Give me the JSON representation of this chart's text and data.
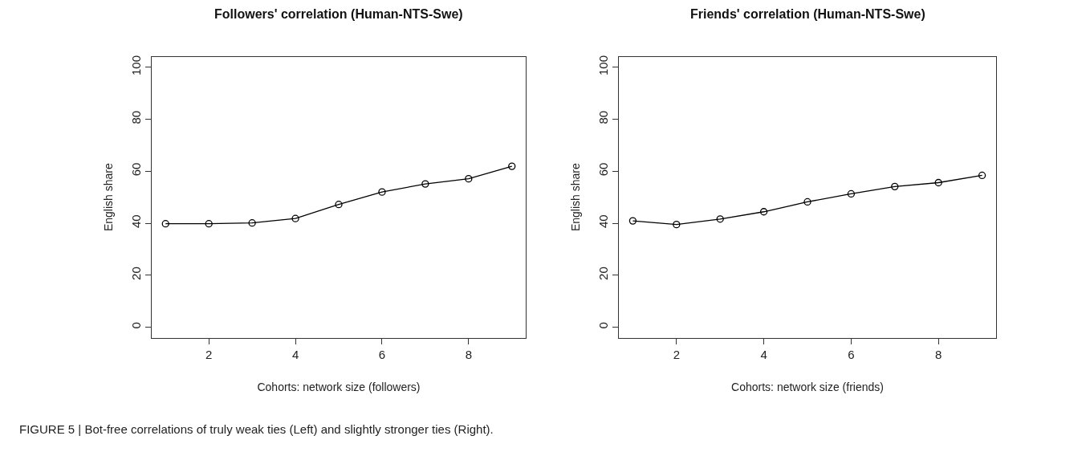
{
  "chart_data": [
    {
      "type": "line",
      "title": "Followers' correlation (Human-NTS-Swe)",
      "xlabel": "Cohorts: network size (followers)",
      "ylabel": "English share",
      "x": [
        1,
        2,
        3,
        4,
        5,
        6,
        7,
        8,
        9
      ],
      "series": [
        {
          "color": "#000000",
          "values": [
            39.8,
            39.8,
            40.1,
            41.8,
            47.2,
            52.0,
            55.1,
            57.1,
            61.9
          ]
        }
      ],
      "xlim": [
        0.68,
        9.32
      ],
      "xticks": [
        2,
        4,
        6,
        8
      ],
      "ylim": [
        -4,
        104
      ],
      "yticks": [
        0,
        20,
        40,
        60,
        80,
        100
      ],
      "marker": "circle",
      "line_style": "solid",
      "annotations": [
        "FIGURE 5 | Bot-free correlations of truly weak ties (Left) and slightly stronger ties (Right)."
      ]
    },
    {
      "type": "line",
      "title": "Friends' correlation (Human-NTS-Swe)",
      "xlabel": "Cohorts: network size (friends)",
      "ylabel": "English share",
      "x": [
        1,
        2,
        3,
        4,
        5,
        6,
        7,
        8,
        9
      ],
      "series": [
        {
          "color": "#000000",
          "values": [
            40.9,
            39.5,
            41.6,
            44.4,
            48.2,
            51.3,
            54.1,
            55.6,
            58.4
          ]
        }
      ],
      "xlim": [
        0.68,
        9.32
      ],
      "xticks": [
        2,
        4,
        6,
        8
      ],
      "ylim": [
        -4,
        104
      ],
      "yticks": [
        0,
        20,
        40,
        60,
        80,
        100
      ],
      "marker": "circle",
      "line_style": "solid"
    }
  ]
}
